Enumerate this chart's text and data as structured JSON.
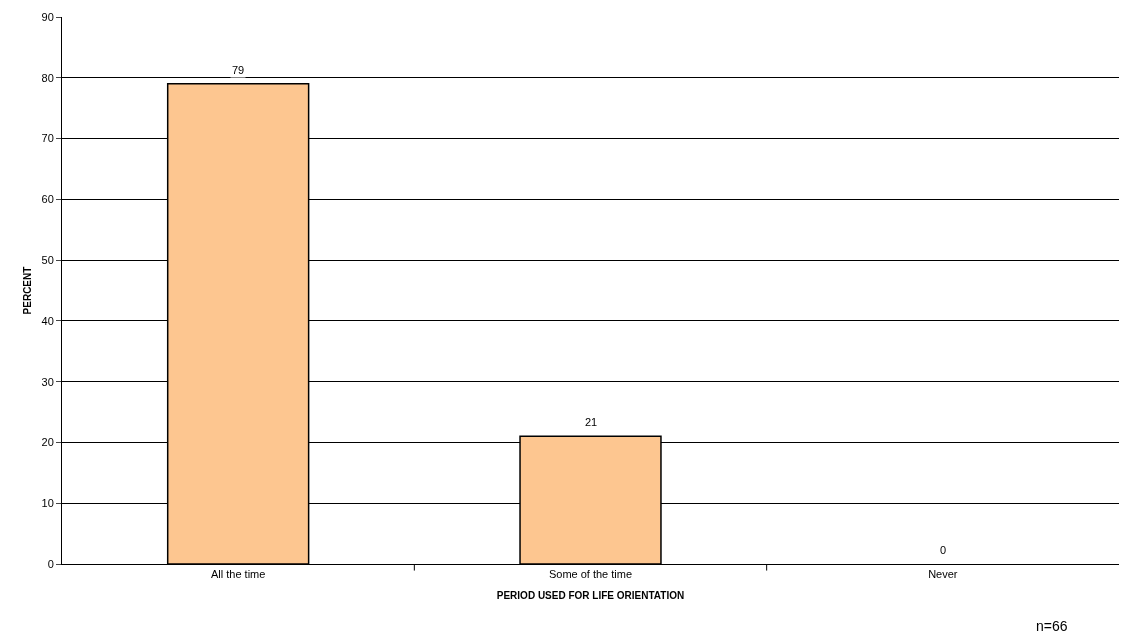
{
  "chart_data": {
    "type": "bar",
    "xlabel": "PERIOD USED FOR LIFE ORIENTATION",
    "ylabel": "PERCENT",
    "categories": [
      "All the time",
      "Some of the time",
      "Never"
    ],
    "values": [
      79,
      21,
      0
    ],
    "color": "#fdc690",
    "ylim": [
      0,
      90
    ],
    "yticks": [
      0,
      10,
      20,
      30,
      40,
      50,
      60,
      70,
      80,
      90
    ],
    "grid": "y",
    "data_labels": true,
    "annotations": [
      "n=66"
    ]
  }
}
